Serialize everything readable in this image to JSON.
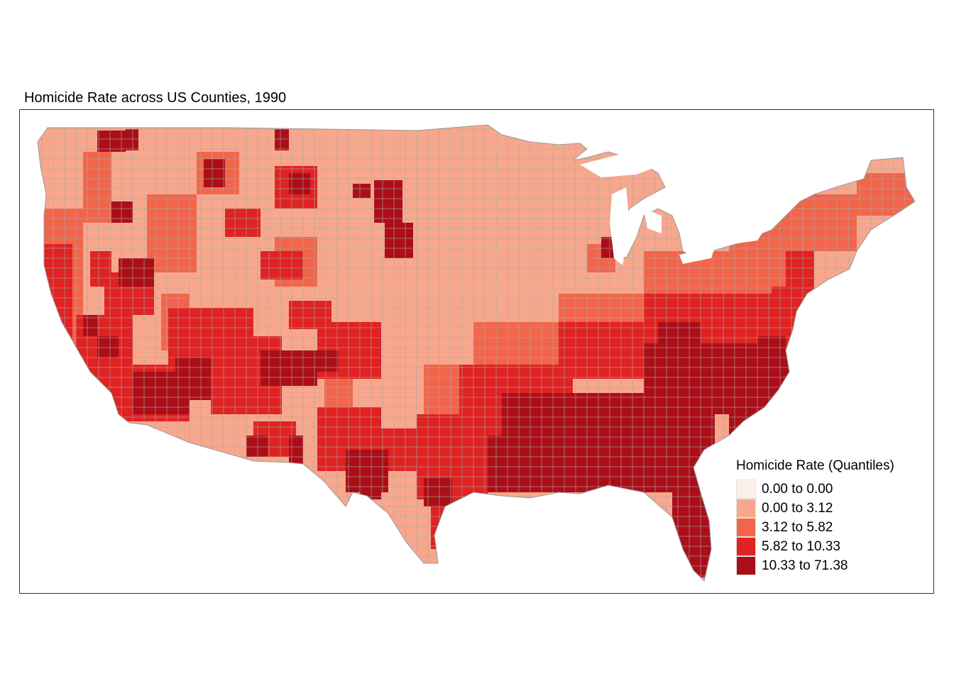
{
  "map": {
    "title": "Homicide Rate across US Counties, 1990",
    "colors": {
      "q1": "#fdf0ea",
      "q2": "#f9a78c",
      "q3": "#f2654a",
      "q4": "#e02222",
      "q5": "#ac0e18",
      "county_border": "#9e9e9e"
    },
    "legend": {
      "title": "Homicide Rate (Quantiles)",
      "items": [
        {
          "label": "0.00 to 0.00",
          "color": "#fdf0ea"
        },
        {
          "label": "0.00 to 3.12",
          "color": "#f9a78c"
        },
        {
          "label": "3.12 to 5.82",
          "color": "#f2654a"
        },
        {
          "label": "5.82 to 10.33",
          "color": "#e02222"
        },
        {
          "label": "10.33 to 71.38",
          "color": "#ac0e18"
        }
      ]
    }
  }
}
